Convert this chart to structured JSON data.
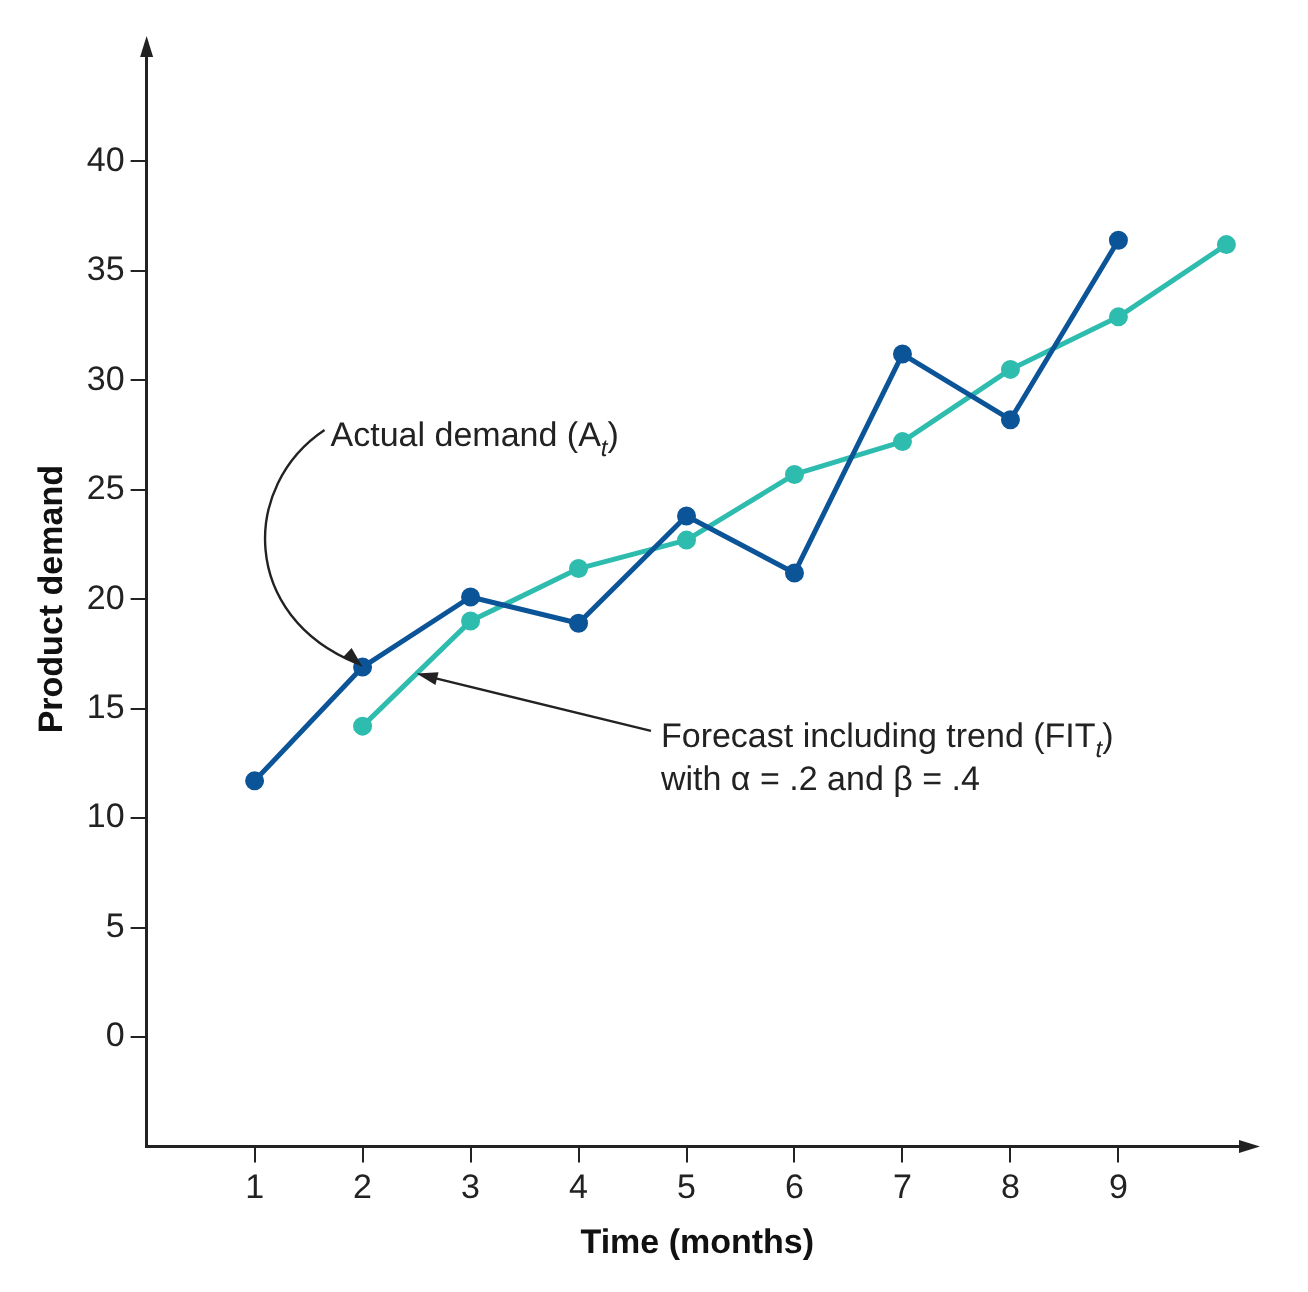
{
  "chart_data": {
    "type": "line",
    "xlabel": "Time (months)",
    "ylabel": "Product demand",
    "xlim": [
      0,
      10.2
    ],
    "xticks": [
      1,
      2,
      3,
      4,
      5,
      6,
      7,
      8,
      9
    ],
    "ylim": [
      -5,
      45
    ],
    "yticks": [
      0,
      5,
      10,
      15,
      20,
      25,
      30,
      35,
      40
    ],
    "grid": false,
    "legend": false,
    "marker": "circle",
    "line_style": "solid",
    "series": [
      {
        "color": "#0b5497",
        "x": [
          1,
          2,
          3,
          4,
          5,
          6,
          7,
          8,
          9
        ],
        "values": [
          11.7,
          16.9,
          20.1,
          18.9,
          23.8,
          21.2,
          31.2,
          28.2,
          36.4
        ]
      },
      {
        "color": "#2dbcae",
        "x": [
          2,
          3,
          4,
          5,
          6,
          7,
          8,
          9,
          10
        ],
        "values": [
          14.2,
          19.0,
          21.4,
          22.7,
          25.7,
          27.2,
          30.5,
          32.9,
          36.2
        ]
      }
    ],
    "annotations": [
      {
        "text": "Actual demand (A$_{t}$)",
        "x": 2,
        "y": 16.9
      },
      {
        "text": "Forecast including trend (FIT$_{t}$)",
        "x": 2.5,
        "y": 16.6
      },
      "with α = .2 and β = .4"
    ]
  }
}
